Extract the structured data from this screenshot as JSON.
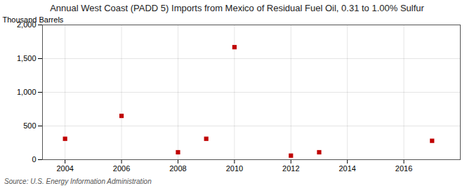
{
  "chart_data": {
    "type": "scatter",
    "title": "Annual West Coast (PADD 5) Imports from Mexico of Residual Fuel Oil, 0.31 to 1.00% Sulfur",
    "ylabel": "Thousand Barrels",
    "source": "Source: U.S. Energy Information Administration",
    "x": [
      2004,
      2006,
      2008,
      2009,
      2010,
      2012,
      2013,
      2017
    ],
    "values": [
      310,
      650,
      110,
      310,
      1670,
      60,
      110,
      280
    ],
    "color": "#c00000",
    "marker": "square",
    "xlim": [
      2003.2,
      2018.0
    ],
    "ylim": [
      0,
      2000
    ],
    "xticks": [
      2004,
      2006,
      2008,
      2010,
      2012,
      2014,
      2016
    ],
    "yticks": [
      0,
      500,
      {
        "value": 1000,
        "label": "1,000"
      },
      {
        "value": 1500,
        "label": "1,500"
      },
      {
        "value": 2000,
        "label": "2,000"
      }
    ],
    "grid": true
  }
}
